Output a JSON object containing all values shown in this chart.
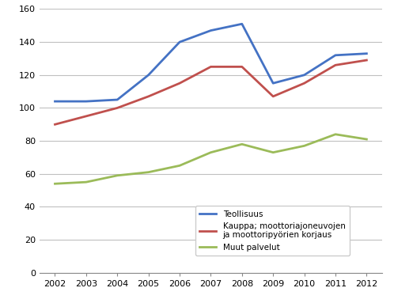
{
  "years": [
    2002,
    2003,
    2004,
    2005,
    2006,
    2007,
    2008,
    2009,
    2010,
    2011,
    2012
  ],
  "teollisuus": [
    104,
    104,
    105,
    120,
    140,
    147,
    151,
    115,
    120,
    132,
    133
  ],
  "kauppa": [
    90,
    95,
    100,
    107,
    115,
    125,
    125,
    107,
    115,
    126,
    129
  ],
  "muut_palvelut": [
    54,
    55,
    59,
    61,
    65,
    73,
    78,
    73,
    77,
    84,
    81
  ],
  "teollisuus_color": "#4472C4",
  "kauppa_color": "#C0504D",
  "muut_palvelut_color": "#9BBB59",
  "ylim": [
    0,
    160
  ],
  "yticks": [
    0,
    20,
    40,
    60,
    80,
    100,
    120,
    140,
    160
  ],
  "legend_teollisuus": "Teollisuus",
  "legend_kauppa": "Kauppa; moottoriajoneuvojen\nja moottoripyörien korjaus",
  "legend_muut": "Muut palvelut",
  "background_color": "#ffffff",
  "grid_color": "#c0c0c0",
  "linewidth": 2.0,
  "tick_fontsize": 8,
  "legend_fontsize": 7.5
}
